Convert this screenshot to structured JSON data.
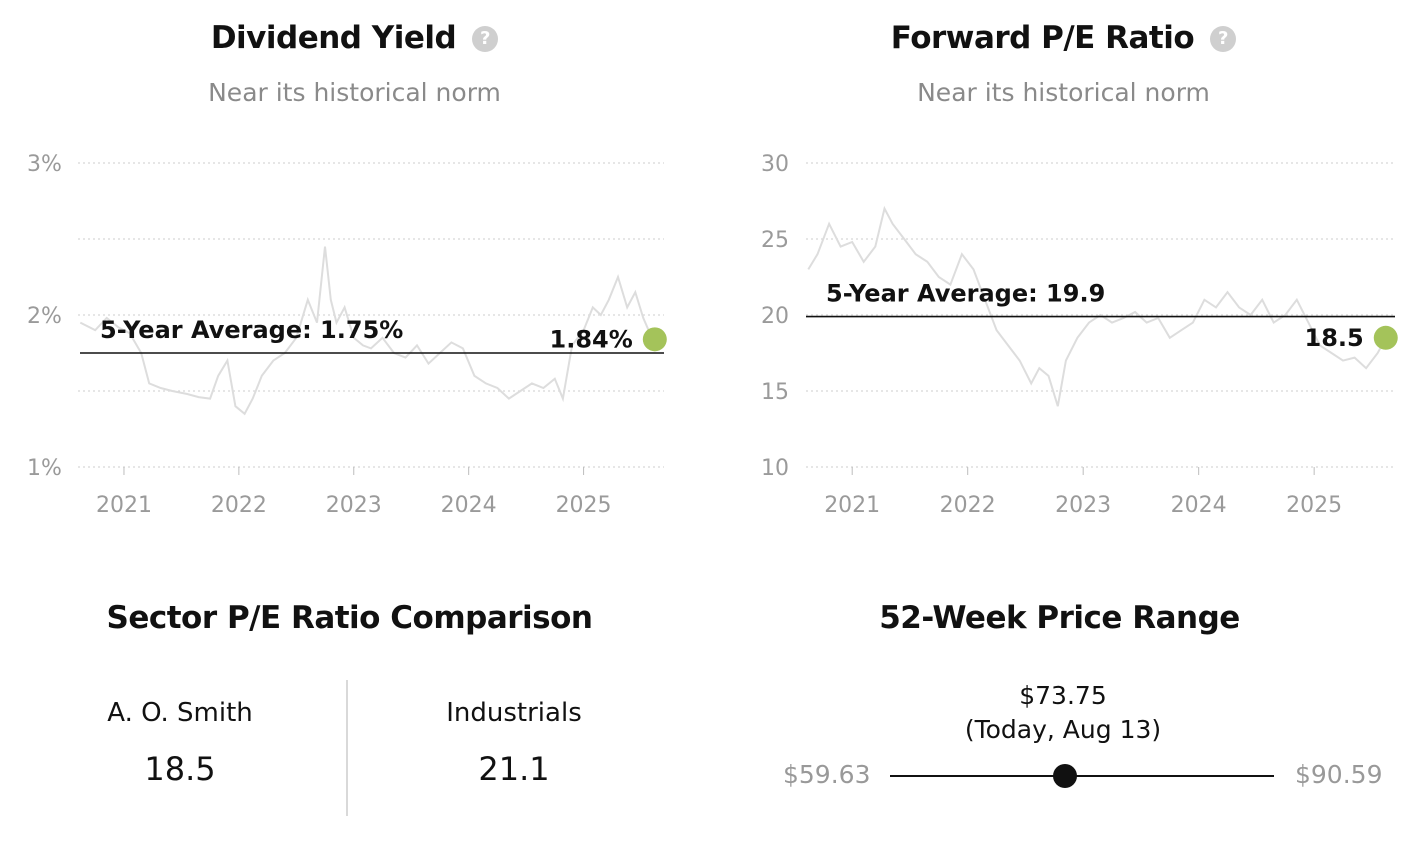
{
  "dividend": {
    "title": "Dividend Yield",
    "help_icon": "question-circle-icon",
    "subtitle": "Near its historical norm"
  },
  "forward_pe": {
    "title": "Forward P/E Ratio",
    "help_icon": "question-circle-icon",
    "subtitle": "Near its historical norm"
  },
  "sector": {
    "title": "Sector P/E Ratio Comparison",
    "left_name": "A. O. Smith",
    "left_value": "18.5",
    "right_name": "Industrials",
    "right_value": "21.1"
  },
  "price_range": {
    "title": "52-Week Price Range",
    "low": "$59.63",
    "high": "$90.59",
    "current": "$73.75",
    "current_note": "(Today, Aug 13)",
    "low_value": 59.63,
    "high_value": 90.59,
    "current_value": 73.75
  },
  "colors": {
    "marker": "#a4c35a",
    "history_line": "#dddddd",
    "grid": "#d6d6d6",
    "tick_text": "#9a9a9a"
  },
  "chart_data": [
    {
      "type": "line",
      "name": "dividend-yield",
      "y_format": "percent",
      "y_ticks": [
        1,
        2,
        3
      ],
      "y_tick_labels": [
        "1%",
        "2%",
        "3%"
      ],
      "grid_ticks": [
        1,
        1.5,
        2,
        2.5,
        3
      ],
      "ylim": [
        1,
        3
      ],
      "x_ticks": [
        2021,
        2022,
        2023,
        2024,
        2025
      ],
      "x_tick_labels": [
        "2021",
        "2022",
        "2023",
        "2024",
        "2025"
      ],
      "xlim": [
        2020.6,
        2025.7
      ],
      "average": 1.75,
      "average_label": "5-Year Average: 1.75%",
      "current": 1.84,
      "current_x": 2025.62,
      "current_label": "1.84%",
      "series": {
        "x": [
          2020.62,
          2020.75,
          2020.85,
          2020.95,
          2021.05,
          2021.15,
          2021.22,
          2021.32,
          2021.42,
          2021.55,
          2021.65,
          2021.75,
          2021.82,
          2021.9,
          2021.97,
          2022.05,
          2022.12,
          2022.2,
          2022.3,
          2022.4,
          2022.5,
          2022.6,
          2022.68,
          2022.75,
          2022.8,
          2022.85,
          2022.92,
          2023.0,
          2023.08,
          2023.15,
          2023.25,
          2023.35,
          2023.45,
          2023.55,
          2023.65,
          2023.75,
          2023.85,
          2023.95,
          2024.05,
          2024.15,
          2024.25,
          2024.35,
          2024.45,
          2024.55,
          2024.65,
          2024.75,
          2024.82,
          2024.9,
          2025.0,
          2025.08,
          2025.15,
          2025.22,
          2025.3,
          2025.38,
          2025.45,
          2025.52,
          2025.6
        ],
        "y": [
          1.95,
          1.9,
          1.98,
          1.92,
          1.88,
          1.75,
          1.55,
          1.52,
          1.5,
          1.48,
          1.46,
          1.45,
          1.6,
          1.7,
          1.4,
          1.35,
          1.45,
          1.6,
          1.7,
          1.75,
          1.85,
          2.1,
          1.95,
          2.45,
          2.1,
          1.95,
          2.05,
          1.85,
          1.8,
          1.78,
          1.85,
          1.75,
          1.72,
          1.8,
          1.68,
          1.75,
          1.82,
          1.78,
          1.6,
          1.55,
          1.52,
          1.45,
          1.5,
          1.55,
          1.52,
          1.58,
          1.45,
          1.8,
          1.9,
          2.05,
          2.0,
          2.1,
          2.25,
          2.05,
          2.15,
          1.98,
          1.84
        ]
      }
    },
    {
      "type": "line",
      "name": "forward-pe-ratio",
      "y_format": "number",
      "y_ticks": [
        10,
        15,
        20,
        25,
        30
      ],
      "y_tick_labels": [
        "10",
        "15",
        "20",
        "25",
        "30"
      ],
      "grid_ticks": [
        10,
        15,
        20,
        25,
        30
      ],
      "ylim": [
        10,
        30
      ],
      "x_ticks": [
        2021,
        2022,
        2023,
        2024,
        2025
      ],
      "x_tick_labels": [
        "2021",
        "2022",
        "2023",
        "2024",
        "2025"
      ],
      "xlim": [
        2020.6,
        2025.7
      ],
      "average": 19.9,
      "average_label": "5-Year Average: 19.9",
      "current": 18.5,
      "current_x": 2025.62,
      "current_label": "18.5",
      "series": {
        "x": [
          2020.62,
          2020.7,
          2020.8,
          2020.9,
          2021.0,
          2021.1,
          2021.2,
          2021.28,
          2021.35,
          2021.45,
          2021.55,
          2021.65,
          2021.75,
          2021.85,
          2021.95,
          2022.05,
          2022.15,
          2022.25,
          2022.35,
          2022.45,
          2022.55,
          2022.62,
          2022.7,
          2022.78,
          2022.85,
          2022.95,
          2023.05,
          2023.15,
          2023.25,
          2023.35,
          2023.45,
          2023.55,
          2023.65,
          2023.75,
          2023.85,
          2023.95,
          2024.05,
          2024.15,
          2024.25,
          2024.35,
          2024.45,
          2024.55,
          2024.65,
          2024.75,
          2024.85,
          2024.95,
          2025.05,
          2025.15,
          2025.25,
          2025.35,
          2025.45,
          2025.55,
          2025.62
        ],
        "y": [
          23,
          24,
          26,
          24.5,
          24.8,
          23.5,
          24.5,
          27,
          26,
          25,
          24,
          23.5,
          22.5,
          22,
          24,
          23,
          21,
          19,
          18,
          17,
          15.5,
          16.5,
          16,
          14,
          17,
          18.5,
          19.5,
          20,
          19.5,
          19.8,
          20.2,
          19.5,
          19.8,
          18.5,
          19,
          19.5,
          21,
          20.5,
          21.5,
          20.5,
          20,
          21,
          19.5,
          20,
          21,
          19.5,
          18,
          17.5,
          17,
          17.2,
          16.5,
          17.5,
          18.5
        ]
      }
    }
  ]
}
